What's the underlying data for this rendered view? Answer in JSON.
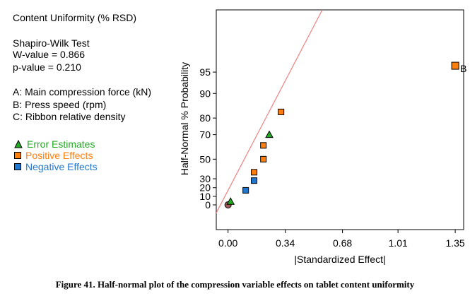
{
  "info": {
    "response": "Content Uniformity (% RSD)",
    "test_name": "Shapiro-Wilk Test",
    "w_value": "W-value = 0.866",
    "p_value": "p-value = 0.210",
    "factor_a": "A: Main compression force (kN)",
    "factor_b": "B: Press speed (rpm)",
    "factor_c": "C: Ribbon relative density"
  },
  "legend": [
    {
      "label": "Error Estimates",
      "color": "#22aa22",
      "shape": "triangle"
    },
    {
      "label": "Positive Effects",
      "color": "#ff7f0e",
      "shape": "square"
    },
    {
      "label": "Negative Effects",
      "color": "#1f77d0",
      "shape": "square"
    }
  ],
  "caption": "Figure 41. Half-normal plot of the compression variable effects on tablet content uniformity",
  "colors": {
    "line": "#f08080",
    "origin": "#a05a5a"
  },
  "chart_data": {
    "type": "scatter",
    "title": "",
    "xlabel": "|Standardized Effect|",
    "ylabel": "Half-Normal % Probability",
    "xlim": [
      -0.07,
      1.4
    ],
    "x_ticks": [
      0.0,
      0.34,
      0.68,
      1.01,
      1.35
    ],
    "x_tick_labels": [
      "0.00",
      "0.34",
      "0.68",
      "1.01",
      "1.35"
    ],
    "y_ticks": [
      0,
      10,
      20,
      30,
      50,
      70,
      80,
      90,
      95
    ],
    "y_tick_labels": [
      "0",
      "10",
      "20",
      "30",
      "50",
      "70",
      "80",
      "90",
      "95"
    ],
    "reference_line": {
      "x": [
        -0.1,
        0.56
      ],
      "p": [
        0,
        99.6
      ]
    },
    "series": [
      {
        "name": "Origin",
        "marker": "circle",
        "points": [
          {
            "x": 0.0,
            "p": 0
          }
        ]
      },
      {
        "name": "Error Estimates",
        "marker": "triangle",
        "points": [
          {
            "x": 0.015,
            "p": 4
          },
          {
            "x": 0.245,
            "p": 70
          }
        ]
      },
      {
        "name": "Positive Effects",
        "marker": "square",
        "points": [
          {
            "x": 0.155,
            "p": 37
          },
          {
            "x": 0.21,
            "p": 50
          },
          {
            "x": 0.21,
            "p": 62
          },
          {
            "x": 0.315,
            "p": 83
          },
          {
            "x": 1.35,
            "p": 96
          }
        ]
      },
      {
        "name": "Negative Effects",
        "marker": "square",
        "points": [
          {
            "x": 0.105,
            "p": 17
          },
          {
            "x": 0.155,
            "p": 28
          }
        ]
      }
    ],
    "point_labels": [
      {
        "x": 1.35,
        "p": 96,
        "text": "B"
      }
    ]
  }
}
